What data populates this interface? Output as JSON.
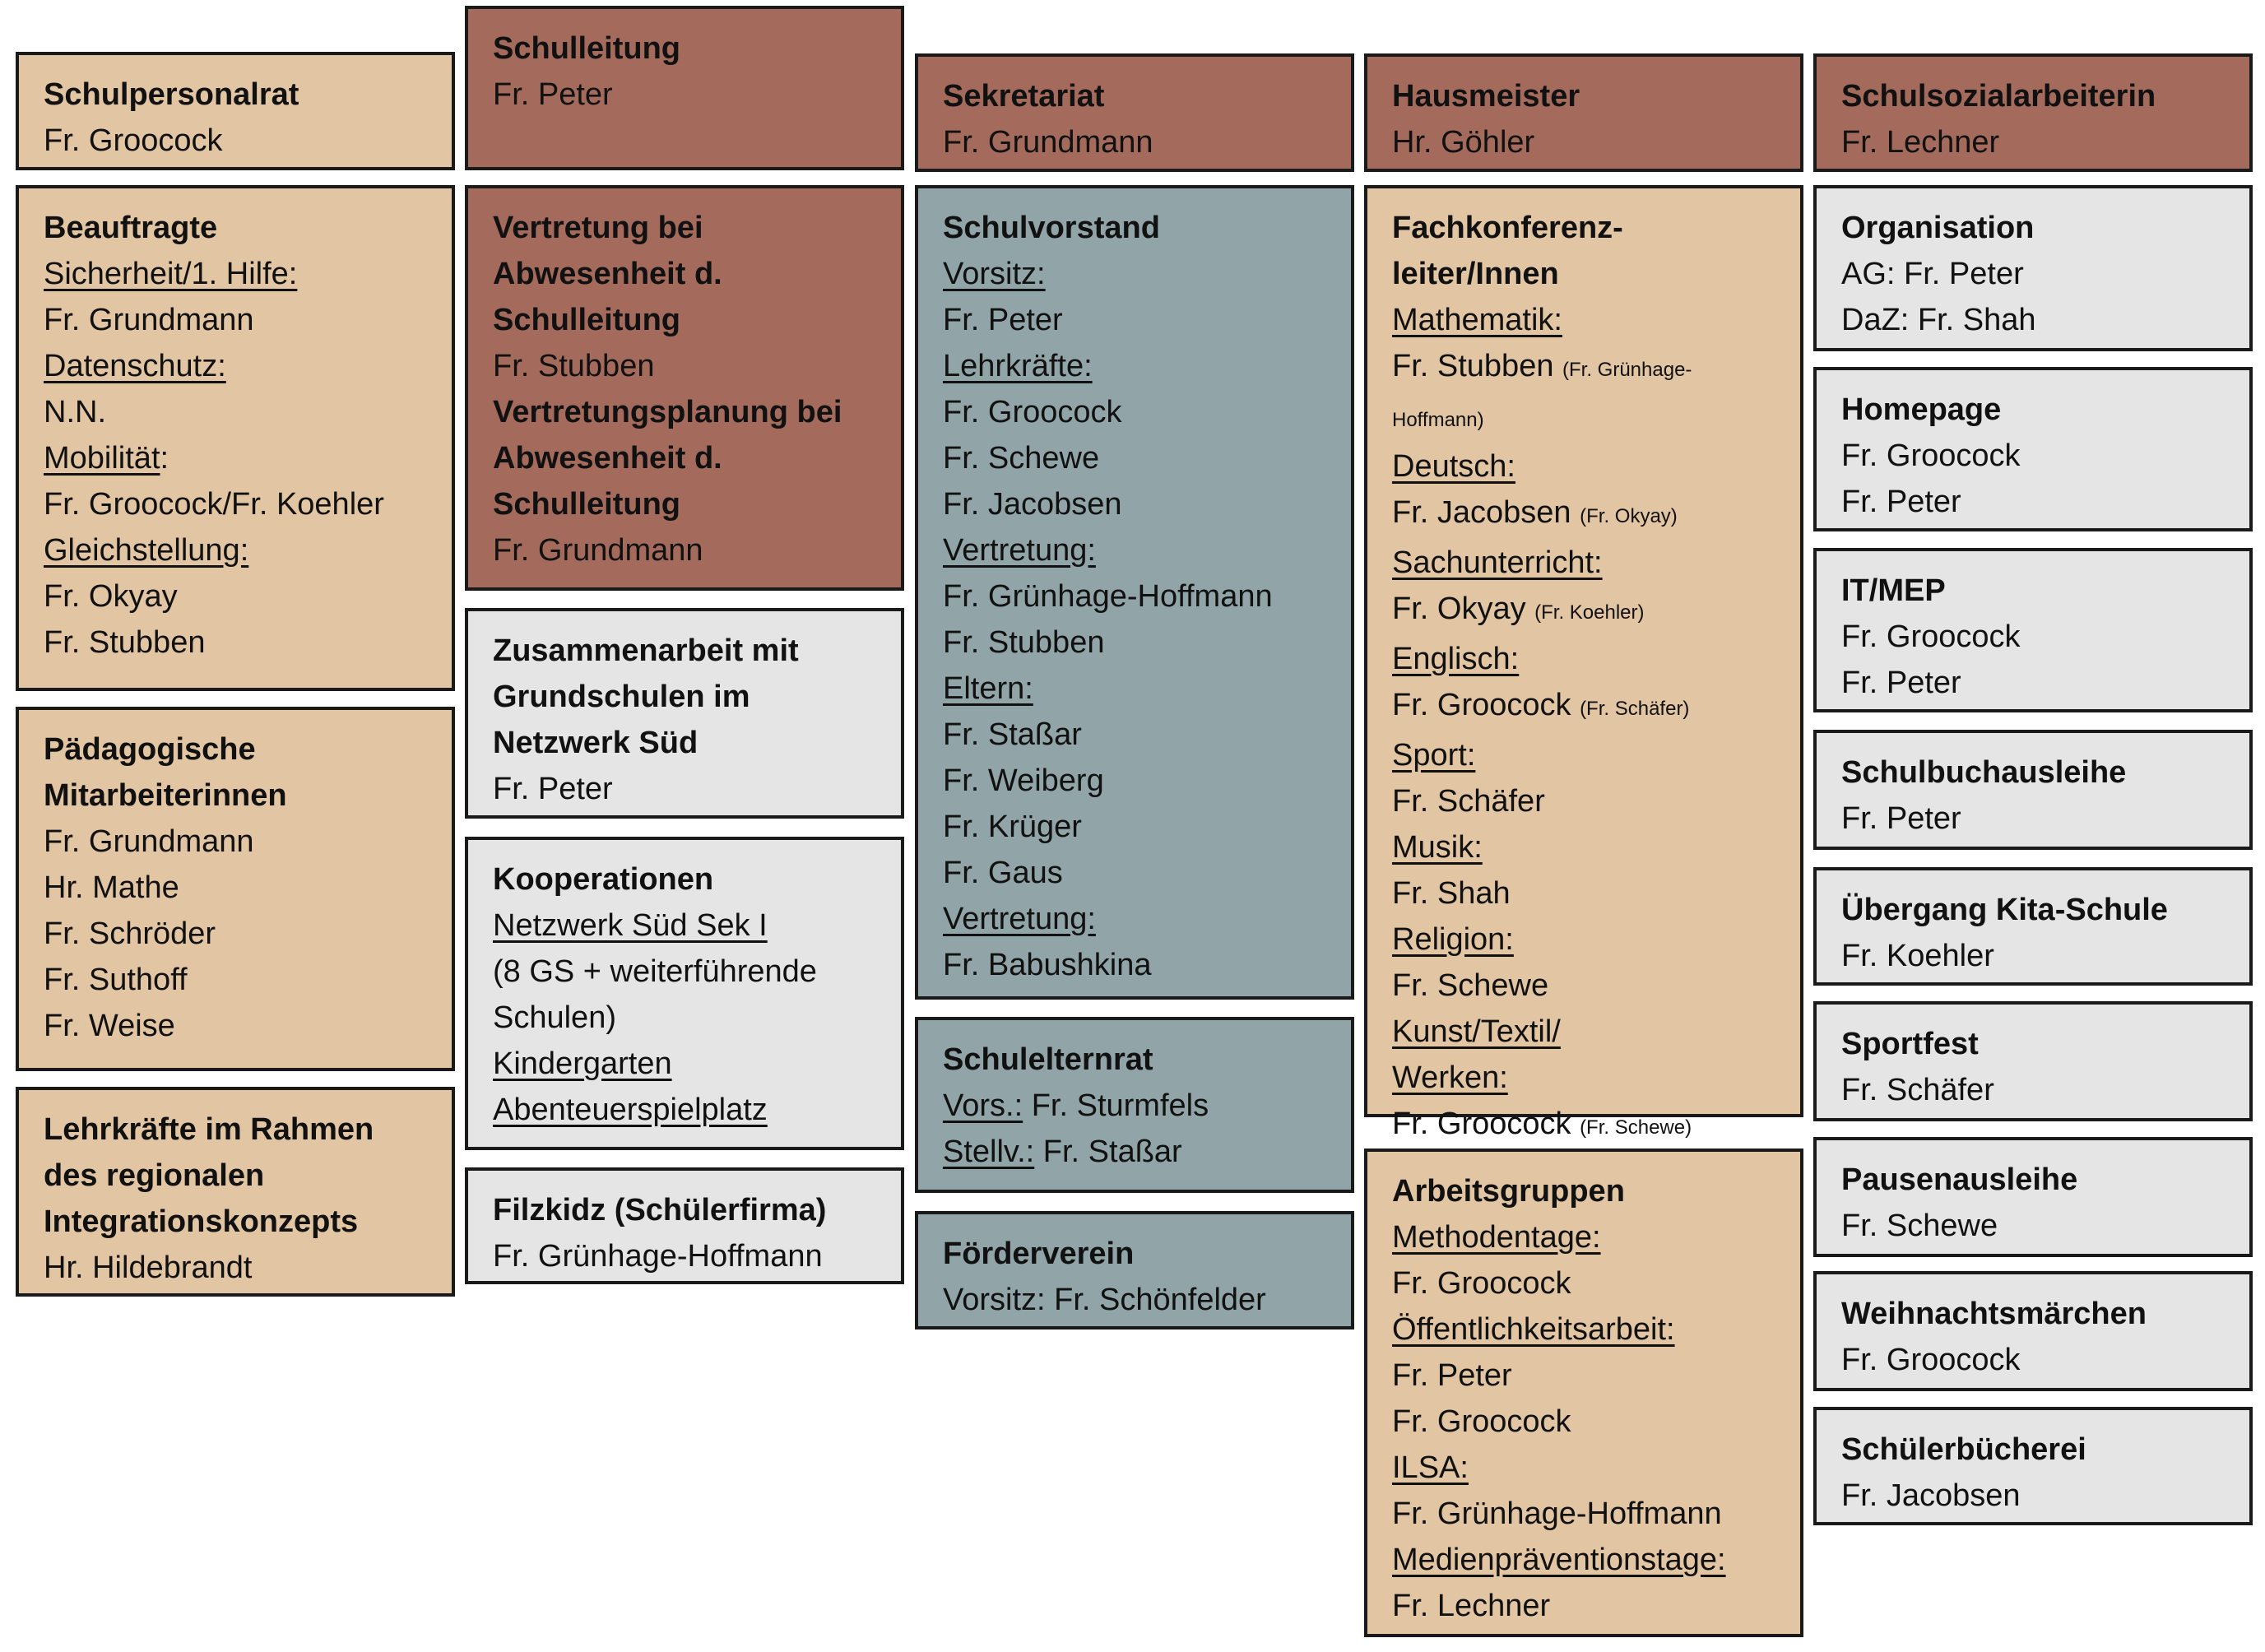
{
  "colors": {
    "tan": "#E2C5A2",
    "brown": "#A46B5C",
    "blue": "#91A4A7",
    "gray": "#E5E5E5"
  },
  "boxes": [
    {
      "id": "schulpersonalrat",
      "color": "tan",
      "lines": [
        {
          "b": "Schulpersonalrat"
        },
        {
          "t": "Fr. Groocock"
        }
      ]
    },
    {
      "id": "beauftragte",
      "color": "tan",
      "lines": [
        {
          "b": "Beauftragte"
        },
        {
          "u": "Sicherheit/1. Hilfe:"
        },
        {
          "t": "Fr. Grundmann"
        },
        {
          "u": "Datenschutz:"
        },
        {
          "t": "N.N."
        },
        {
          "u": "Mobilität",
          "t": ":"
        },
        {
          "t": "Fr. Groocock/Fr. Koehler"
        },
        {
          "u": "Gleichstellung:"
        },
        {
          "t": "Fr. Okyay"
        },
        {
          "t": "Fr. Stubben"
        }
      ]
    },
    {
      "id": "paedagogische-mitarbeiterinnen",
      "color": "tan",
      "lines": [
        {
          "b": "Pädagogische"
        },
        {
          "b": "Mitarbeiterinnen"
        },
        {
          "t": "Fr. Grundmann"
        },
        {
          "t": "Hr. Mathe"
        },
        {
          "t": "Fr. Schröder"
        },
        {
          "t": "Fr. Suthoff"
        },
        {
          "t": "Fr. Weise"
        }
      ]
    },
    {
      "id": "lehrkraefte-integration",
      "color": "tan",
      "lines": [
        {
          "b": "Lehrkräfte im Rahmen"
        },
        {
          "b": "des regionalen"
        },
        {
          "b": "Integrationskonzepts"
        },
        {
          "t": "Hr. Hildebrandt"
        }
      ]
    },
    {
      "id": "schulleitung",
      "color": "brown",
      "lines": [
        {
          "b": "Schulleitung"
        },
        {
          "t": "Fr. Peter"
        }
      ]
    },
    {
      "id": "vertretung",
      "color": "brown",
      "lines": [
        {
          "b": "Vertretung bei"
        },
        {
          "b": "Abwesenheit d."
        },
        {
          "b": "Schulleitung"
        },
        {
          "t": "Fr. Stubben"
        },
        {
          "b": "Vertretungsplanung bei"
        },
        {
          "b": "Abwesenheit d."
        },
        {
          "b": "Schulleitung"
        },
        {
          "t": "Fr. Grundmann"
        }
      ]
    },
    {
      "id": "zusammenarbeit",
      "color": "gray",
      "lines": [
        {
          "b": "Zusammenarbeit mit"
        },
        {
          "b": "Grundschulen im"
        },
        {
          "b": "Netzwerk Süd"
        },
        {
          "t": "Fr. Peter"
        }
      ]
    },
    {
      "id": "kooperationen",
      "color": "gray",
      "lines": [
        {
          "b": "Kooperationen"
        },
        {
          "u": "Netzwerk Süd Sek I"
        },
        {
          "t": "(8 GS + weiterführende"
        },
        {
          "t": "Schulen)"
        },
        {
          "u": "Kindergarten"
        },
        {
          "u": "Abenteuerspielplatz"
        }
      ]
    },
    {
      "id": "filzkidz",
      "color": "gray",
      "lines": [
        {
          "b": "Filzkidz (Schülerfirma)"
        },
        {
          "t": "Fr. Grünhage-Hoffmann"
        }
      ]
    },
    {
      "id": "sekretariat",
      "color": "brown",
      "lines": [
        {
          "b": "Sekretariat"
        },
        {
          "t": "Fr. Grundmann"
        }
      ]
    },
    {
      "id": "schulvorstand",
      "color": "blue",
      "lines": [
        {
          "b": "Schulvorstand"
        },
        {
          "u": "Vorsitz:"
        },
        {
          "t": "Fr. Peter"
        },
        {
          "u": "Lehrkräfte:"
        },
        {
          "t": "Fr. Groocock"
        },
        {
          "t": "Fr. Schewe"
        },
        {
          "t": "Fr. Jacobsen"
        },
        {
          "u": "Vertretung:"
        },
        {
          "t": "Fr. Grünhage-Hoffmann"
        },
        {
          "t": "Fr. Stubben"
        },
        {
          "u": "Eltern:"
        },
        {
          "t": "Fr. Staßar"
        },
        {
          "t": "Fr. Weiberg"
        },
        {
          "t": "Fr. Krüger"
        },
        {
          "t": "Fr. Gaus"
        },
        {
          "u": "Vertretung:"
        },
        {
          "t": "Fr. Babushkina"
        }
      ]
    },
    {
      "id": "schulelternrat",
      "color": "blue",
      "lines": [
        {
          "b": "Schulelternrat"
        },
        {
          "u": "Vors.:",
          "t": " Fr. Sturmfels"
        },
        {
          "u": "Stellv.:",
          "t": " Fr. Staßar"
        }
      ]
    },
    {
      "id": "foerderverein",
      "color": "blue",
      "lines": [
        {
          "b": "Förderverein"
        },
        {
          "t": "Vorsitz: Fr. Schönfelder"
        }
      ]
    },
    {
      "id": "hausmeister",
      "color": "brown",
      "lines": [
        {
          "b": "Hausmeister"
        },
        {
          "t": "Hr. Göhler"
        }
      ]
    },
    {
      "id": "fachkonferenzleiter",
      "color": "tan",
      "lines": [
        {
          "b": "Fachkonferenz-"
        },
        {
          "b": "leiter/Innen"
        },
        {
          "u": "Mathematik:"
        },
        {
          "t": "Fr. Stubben ",
          "sm": "(Fr. Grünhage-Hoffmann)"
        },
        {
          "u": "Deutsch:"
        },
        {
          "t": "Fr. Jacobsen ",
          "sm": "(Fr. Okyay)"
        },
        {
          "u": "Sachunterricht:"
        },
        {
          "t": "Fr. Okyay ",
          "sm": "(Fr. Koehler)"
        },
        {
          "u": "Englisch:"
        },
        {
          "t": "Fr. Groocock ",
          "sm": "(Fr. Schäfer)"
        },
        {
          "u": "Sport:"
        },
        {
          "t": "Fr. Schäfer"
        },
        {
          "u": "Musik:"
        },
        {
          "t": "Fr. Shah"
        },
        {
          "u": "Religion:"
        },
        {
          "t": "Fr. Schewe"
        },
        {
          "u": "Kunst/Textil/"
        },
        {
          "u": "Werken:"
        },
        {
          "t": "Fr. Groocock ",
          "sm": "(Fr. Schewe)"
        }
      ]
    },
    {
      "id": "arbeitsgruppen",
      "color": "tan",
      "lines": [
        {
          "b": "Arbeitsgruppen"
        },
        {
          "u": "Methodentage:"
        },
        {
          "t": "Fr. Groocock"
        },
        {
          "u": "Öffentlichkeitsarbeit:"
        },
        {
          "t": "Fr. Peter"
        },
        {
          "t": "Fr. Groocock"
        },
        {
          "u": "ILSA:"
        },
        {
          "t": "Fr. Grünhage-Hoffmann"
        },
        {
          "u": "Medienpräventionstage:"
        },
        {
          "t": "Fr. Lechner"
        }
      ]
    },
    {
      "id": "schulsozialarbeiterin",
      "color": "brown",
      "lines": [
        {
          "b": "Schulsozialarbeiterin"
        },
        {
          "t": "Fr. Lechner"
        }
      ]
    },
    {
      "id": "organisation",
      "color": "gray",
      "lines": [
        {
          "b": "Organisation"
        },
        {
          "t": "AG:  Fr. Peter"
        },
        {
          "t": "DaZ: Fr. Shah"
        }
      ]
    },
    {
      "id": "homepage",
      "color": "gray",
      "lines": [
        {
          "b": "Homepage"
        },
        {
          "t": "Fr. Groocock"
        },
        {
          "t": "Fr. Peter"
        }
      ]
    },
    {
      "id": "it-mep",
      "color": "gray",
      "lines": [
        {
          "b": "IT/MEP"
        },
        {
          "t": "Fr. Groocock"
        },
        {
          "t": "Fr. Peter"
        }
      ]
    },
    {
      "id": "schulbuchausleihe",
      "color": "gray",
      "lines": [
        {
          "b": "Schulbuchausleihe"
        },
        {
          "t": "Fr. Peter"
        }
      ]
    },
    {
      "id": "uebergang-kita-schule",
      "color": "gray",
      "lines": [
        {
          "b": "Übergang Kita-Schule"
        },
        {
          "t": "Fr. Koehler"
        }
      ]
    },
    {
      "id": "sportfest",
      "color": "gray",
      "lines": [
        {
          "b": "Sportfest"
        },
        {
          "t": "Fr. Schäfer"
        }
      ]
    },
    {
      "id": "pausenausleihe",
      "color": "gray",
      "lines": [
        {
          "b": "Pausenausleihe"
        },
        {
          "t": "Fr. Schewe"
        }
      ]
    },
    {
      "id": "weihnachtsmaerchen",
      "color": "gray",
      "lines": [
        {
          "b": "Weihnachtsmärchen"
        },
        {
          "t": "Fr. Groocock"
        }
      ]
    },
    {
      "id": "schuelerbuecherei",
      "color": "gray",
      "lines": [
        {
          "b": "Schülerbücherei"
        },
        {
          "t": "Fr. Jacobsen"
        }
      ]
    }
  ]
}
